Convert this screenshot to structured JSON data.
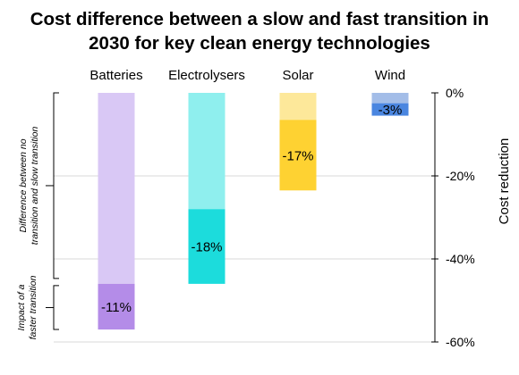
{
  "title_line1": "Cost difference between a slow and fast transition in",
  "title_line2": "2030 for key clean energy technologies",
  "chart_data": {
    "type": "bar",
    "title": "Cost difference between a slow and fast transition in 2030 for key clean energy technologies",
    "categories": [
      "Batteries",
      "Electrolysers",
      "Solar",
      "Wind"
    ],
    "series": [
      {
        "values": [
          -46,
          -28,
          -6.5,
          -2.5
        ],
        "colors": [
          "#d9c8f5",
          "#8fefee",
          "#fde89a",
          "#a3bde8"
        ]
      },
      {
        "values": [
          -11,
          -18,
          -17,
          -3
        ],
        "colors": [
          "#b48ce8",
          "#1cdcdc",
          "#fed232",
          "#4a86e0"
        ]
      }
    ],
    "data_labels": [
      "-11%",
      "-18%",
      "-17%",
      "-3%"
    ],
    "y_axis": {
      "title": "Cost reduction",
      "ticks": [
        0,
        -20,
        -40,
        -60
      ],
      "tick_labels": [
        "0%",
        "-20%",
        "-40%",
        "-60%"
      ],
      "ylim": [
        -60,
        0
      ],
      "side": "right"
    },
    "left_annotations": [
      {
        "text_lines": [
          "Difference between no",
          "transition and slow transition"
        ],
        "range": [
          0,
          -46
        ]
      },
      {
        "text_lines": [
          "Impact of a",
          "faster transition"
        ],
        "range": [
          -46,
          -57
        ]
      }
    ],
    "grid": true,
    "legend": "none"
  }
}
